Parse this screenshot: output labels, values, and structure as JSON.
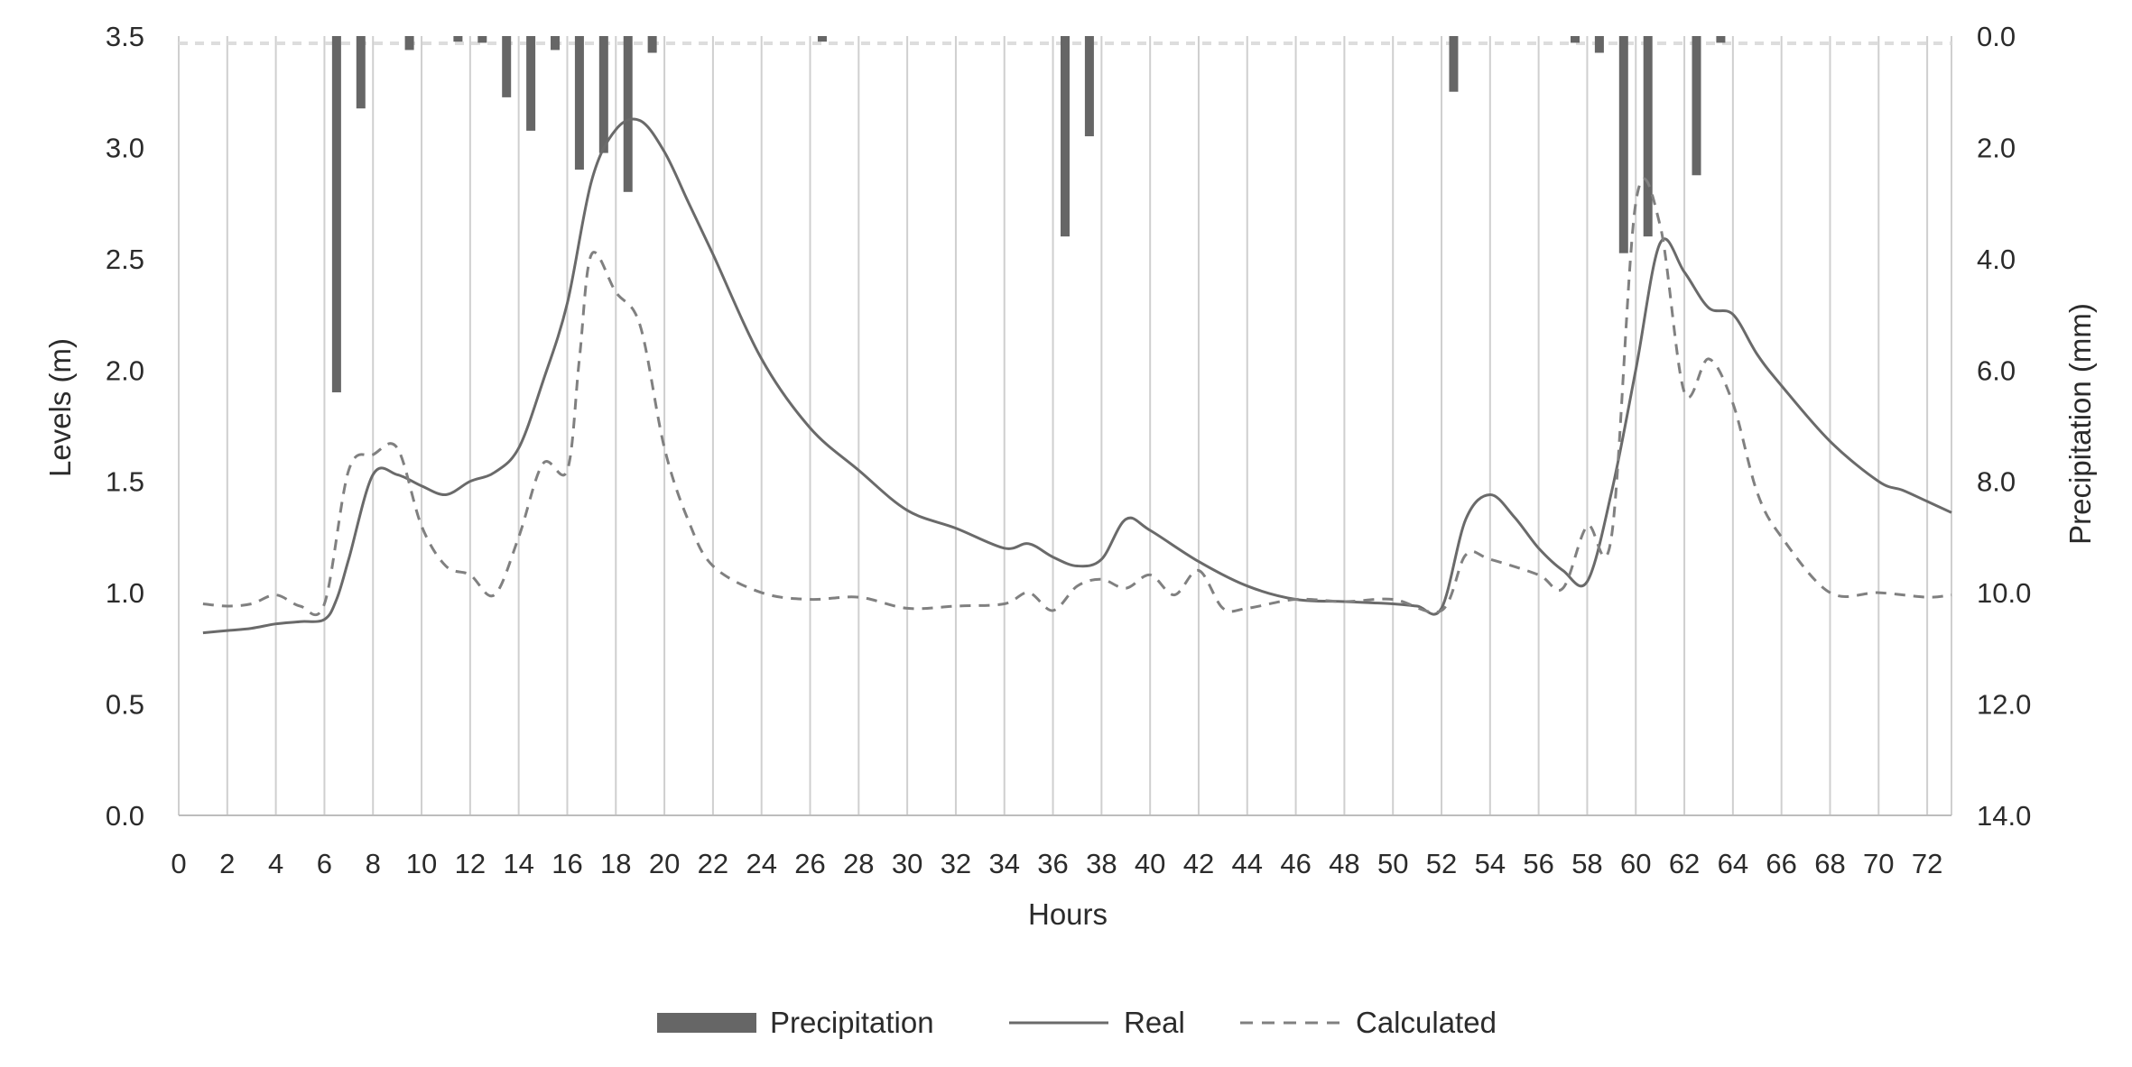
{
  "chart_data": {
    "type": "bar+line",
    "title": "",
    "xlabel": "Hours",
    "ylabel_left": "Levels (m)",
    "ylabel_right": "Precipitation (mm)",
    "xlim": [
      0,
      73
    ],
    "ylim_left": [
      0,
      3.5
    ],
    "ylim_right": [
      0,
      14
    ],
    "right_axis_inverted": true,
    "grid": "vertical",
    "legend_position": "bottom",
    "x_ticks": [
      "0",
      "2",
      "4",
      "6",
      "8",
      "10",
      "12",
      "14",
      "16",
      "18",
      "20",
      "22",
      "24",
      "26",
      "28",
      "30",
      "32",
      "34",
      "36",
      "38",
      "40",
      "42",
      "44",
      "46",
      "48",
      "50",
      "52",
      "54",
      "56",
      "58",
      "60",
      "62",
      "64",
      "66",
      "68",
      "70",
      "72"
    ],
    "y_ticks_left": [
      "0.0",
      "0.5",
      "1.0",
      "1.5",
      "2.0",
      "2.5",
      "3.0",
      "3.5"
    ],
    "y_ticks_right": [
      "0.0",
      "2.0",
      "4.0",
      "6.0",
      "8.0",
      "10.0",
      "12.0",
      "14.0"
    ],
    "legend": [
      "Precipitation",
      "Real",
      "Calculated"
    ],
    "colors": {
      "bars": "#666666",
      "real": "#6a6a6a",
      "calculated": "#808080",
      "grid": "#cfcfcf"
    },
    "series": [
      {
        "name": "Precipitation",
        "kind": "bar",
        "axis": "right",
        "x": [
          6.5,
          7.5,
          9.5,
          11.5,
          12.5,
          13.5,
          14.5,
          15.5,
          16.5,
          17.5,
          18.5,
          19.5,
          26.5,
          36.5,
          37.5,
          52.5,
          57.5,
          58.5,
          59.5,
          60.5,
          62.5,
          63.5
        ],
        "values": [
          6.4,
          1.3,
          0.25,
          0.1,
          0.12,
          1.1,
          1.7,
          0.25,
          2.4,
          2.1,
          2.8,
          0.3,
          0.1,
          3.6,
          1.8,
          1.0,
          0.12,
          0.3,
          3.9,
          3.6,
          2.5,
          0.12
        ]
      },
      {
        "name": "Real",
        "kind": "line",
        "axis": "left",
        "x": [
          1,
          2,
          3,
          4,
          5,
          6,
          6.5,
          7,
          8,
          9,
          10,
          11,
          12,
          13,
          14,
          15,
          16,
          17,
          18,
          19,
          20,
          21,
          22,
          24,
          26,
          28,
          30,
          32,
          34,
          35,
          36,
          37,
          38,
          39,
          40,
          42,
          44,
          46,
          48,
          50,
          51,
          52,
          53,
          54,
          55,
          56,
          57,
          58,
          59,
          60,
          61,
          62,
          63,
          64,
          65,
          66,
          68,
          70,
          71,
          72,
          73
        ],
        "values": [
          0.82,
          0.83,
          0.84,
          0.86,
          0.87,
          0.88,
          0.97,
          1.15,
          1.53,
          1.53,
          1.48,
          1.44,
          1.5,
          1.54,
          1.65,
          1.95,
          2.3,
          2.85,
          3.08,
          3.12,
          2.98,
          2.75,
          2.52,
          2.05,
          1.74,
          1.55,
          1.37,
          1.29,
          1.2,
          1.22,
          1.16,
          1.12,
          1.15,
          1.33,
          1.28,
          1.14,
          1.03,
          0.97,
          0.96,
          0.95,
          0.94,
          0.93,
          1.33,
          1.44,
          1.34,
          1.2,
          1.1,
          1.05,
          1.45,
          2.0,
          2.57,
          2.44,
          2.28,
          2.25,
          2.07,
          1.93,
          1.68,
          1.5,
          1.46,
          1.41,
          1.36
        ]
      },
      {
        "name": "Calculated",
        "kind": "line",
        "axis": "left",
        "x": [
          1,
          2,
          3,
          4,
          5,
          6,
          7,
          8,
          9,
          10,
          11,
          12,
          13,
          14,
          15,
          16,
          16.5,
          17,
          18,
          19,
          20,
          21,
          22,
          24,
          26,
          28,
          30,
          32,
          34,
          35,
          36,
          37,
          38,
          39,
          40,
          41,
          42,
          43,
          44,
          46,
          48,
          50,
          52,
          53,
          54,
          56,
          57,
          58,
          59,
          60,
          61,
          62,
          63,
          64,
          65,
          66,
          68,
          70,
          72,
          73
        ],
        "values": [
          0.95,
          0.94,
          0.95,
          0.99,
          0.94,
          0.95,
          1.55,
          1.62,
          1.65,
          1.3,
          1.12,
          1.08,
          0.99,
          1.25,
          1.58,
          1.55,
          2.05,
          2.52,
          2.35,
          2.2,
          1.65,
          1.32,
          1.12,
          1.0,
          0.97,
          0.98,
          0.93,
          0.94,
          0.95,
          1.0,
          0.92,
          1.03,
          1.06,
          1.02,
          1.08,
          0.99,
          1.1,
          0.93,
          0.93,
          0.97,
          0.96,
          0.97,
          0.92,
          1.17,
          1.15,
          1.08,
          1.02,
          1.3,
          1.25,
          2.75,
          2.65,
          1.9,
          2.05,
          1.85,
          1.45,
          1.25,
          1.0,
          1.0,
          0.98,
          0.99
        ]
      }
    ]
  }
}
